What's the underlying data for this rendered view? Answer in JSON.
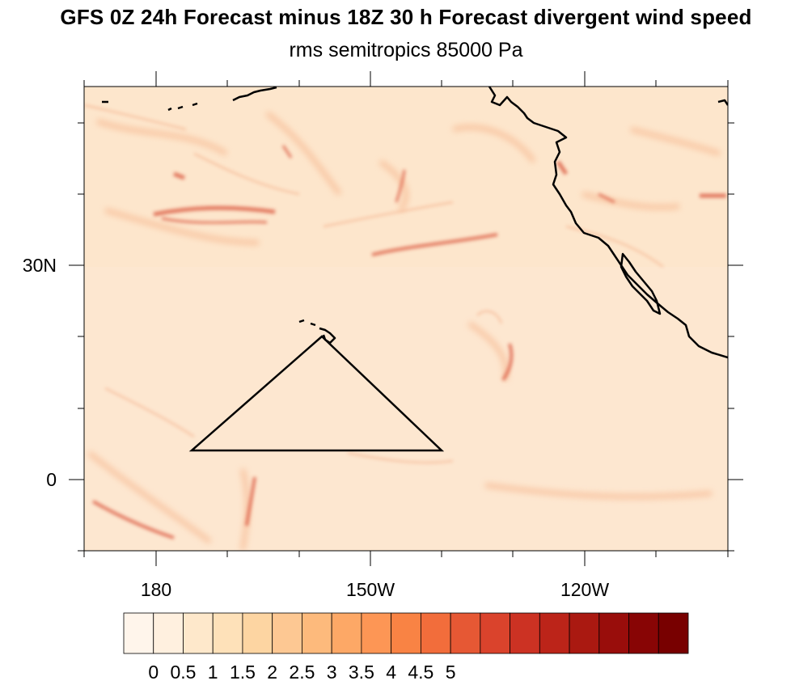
{
  "title": "GFS 0Z 24h Forecast minus 18Z 30 h Forecast divergent wind speed",
  "subtitle": "rms semitropics 85000 Pa",
  "lat_labels": [
    "30N",
    "0"
  ],
  "lon_labels": [
    "180",
    "150W",
    "120W"
  ],
  "colorbar": {
    "labels": [
      "0",
      "0.5",
      "1",
      "1.5",
      "2",
      "2.5",
      "3",
      "3.5",
      "4",
      "4.5",
      "5"
    ],
    "colors": [
      "#fff5eb",
      "#fff0df",
      "#fee8cb",
      "#fee1b9",
      "#fdd5a2",
      "#fdc893",
      "#fdba7c",
      "#fda866",
      "#fd9655",
      "#f98344",
      "#f26d3b",
      "#e65834",
      "#da432c",
      "#cc3223",
      "#bc2419",
      "#aa1911",
      "#990d0b",
      "#880505",
      "#780000"
    ]
  },
  "map": {
    "background_color": "#fde6cc",
    "coastline_color": "#000000",
    "region_label": "semitropics"
  }
}
